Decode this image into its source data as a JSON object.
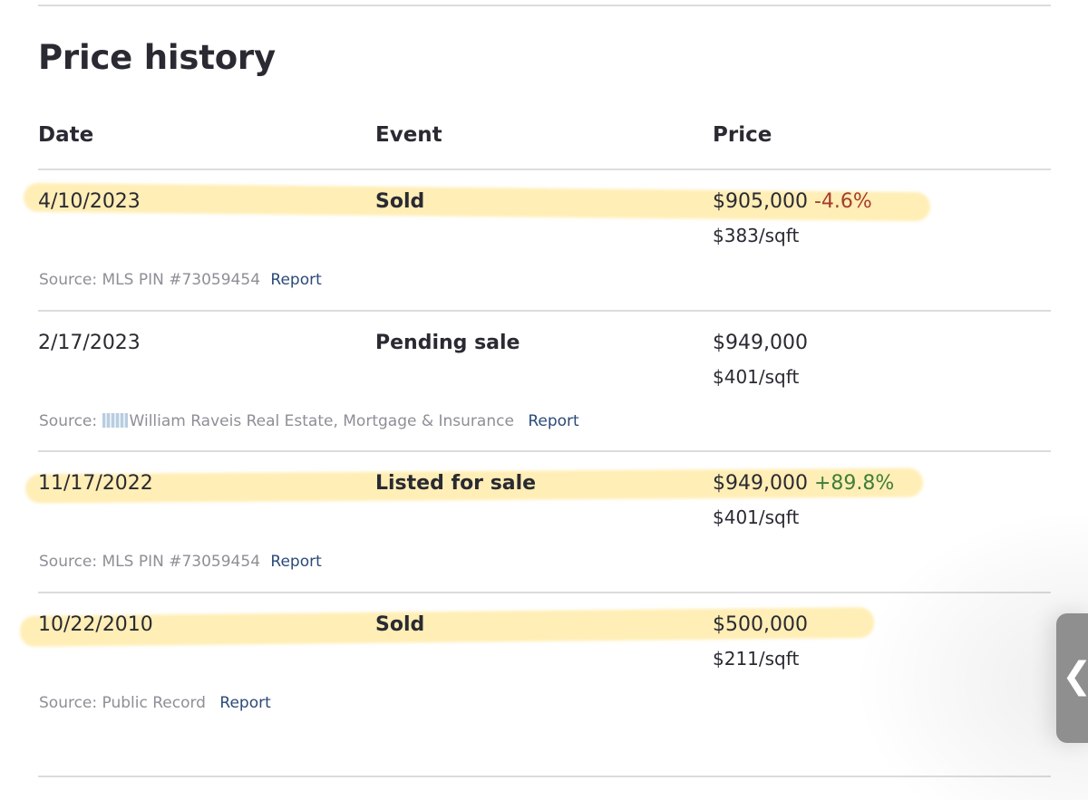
{
  "title": "Price history",
  "columns": {
    "date": "Date",
    "event": "Event",
    "price": "Price"
  },
  "rows": [
    {
      "date": "4/10/2023",
      "event": "Sold",
      "price": "$905,000",
      "change": "-4.6%",
      "change_color": "#a63d2e",
      "per_sqft": "$383/sqft",
      "source_label": "Source: MLS PIN #73059454",
      "report": "Report",
      "highlighted": true
    },
    {
      "date": "2/17/2023",
      "event": "Pending sale",
      "price": "$949,000",
      "change": "",
      "per_sqft": "$401/sqft",
      "source_label": "Source:",
      "source_name": "William Raveis Real Estate, Mortgage & Insurance",
      "source_logo": "william-raveis-logo-icon",
      "report": "Report",
      "highlighted": false
    },
    {
      "date": "11/17/2022",
      "event": "Listed for sale",
      "price": "$949,000",
      "change": "+89.8%",
      "change_color": "#3f7d3a",
      "per_sqft": "$401/sqft",
      "source_label": "Source: MLS PIN #73059454",
      "report": "Report",
      "highlighted": true
    },
    {
      "date": "10/22/2010",
      "event": "Sold",
      "price": "$500,000",
      "change": "",
      "per_sqft": "$211/sqft",
      "source_label": "Source: Public Record",
      "report": "Report",
      "highlighted": true
    }
  ],
  "highlight_color": "#ffe078",
  "side_tab": {
    "icon": "chevron-left-icon",
    "glyph": "❮"
  }
}
